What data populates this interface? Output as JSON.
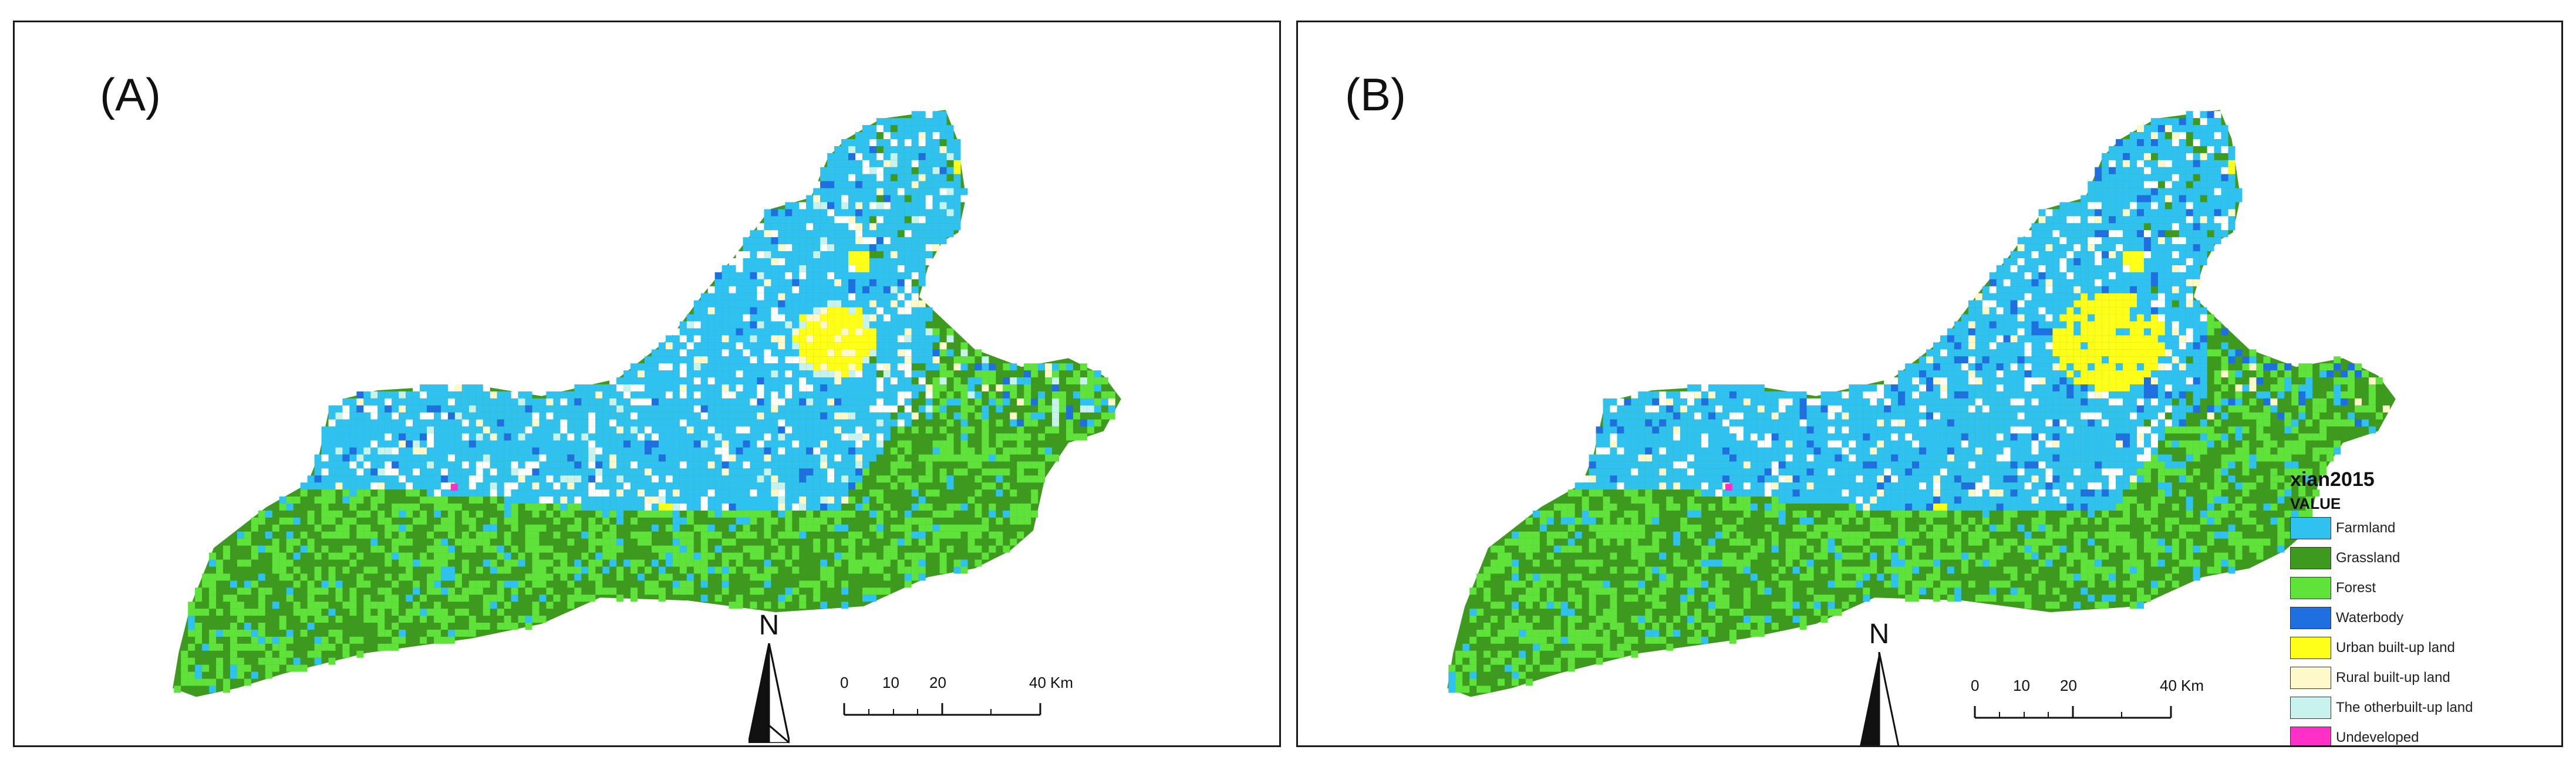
{
  "panels": [
    {
      "label": "(A)",
      "variant": "a"
    },
    {
      "label": "(B)",
      "variant": "b"
    }
  ],
  "north_arrow": {
    "letter": "N"
  },
  "scale_bar": {
    "ticks": [
      "0",
      "10",
      "20",
      "40"
    ],
    "unit": "Km"
  },
  "legend": {
    "title": "xian2015",
    "subtitle": "VALUE",
    "classes": [
      {
        "label": "Farmland",
        "color": "#2fc2f0"
      },
      {
        "label": "Grassland",
        "color": "#3d9a1e"
      },
      {
        "label": "Forest",
        "color": "#5fe23a"
      },
      {
        "label": "Waterbody",
        "color": "#1f6fe0"
      },
      {
        "label": "Urban built-up land",
        "color": "#ffff1a"
      },
      {
        "label": "Rural built-up land",
        "color": "#fff8c8"
      },
      {
        "label": "The otherbuilt-up land",
        "color": "#c8f2ee"
      },
      {
        "label": "Undeveloped",
        "color": "#ff2fc8"
      }
    ]
  }
}
